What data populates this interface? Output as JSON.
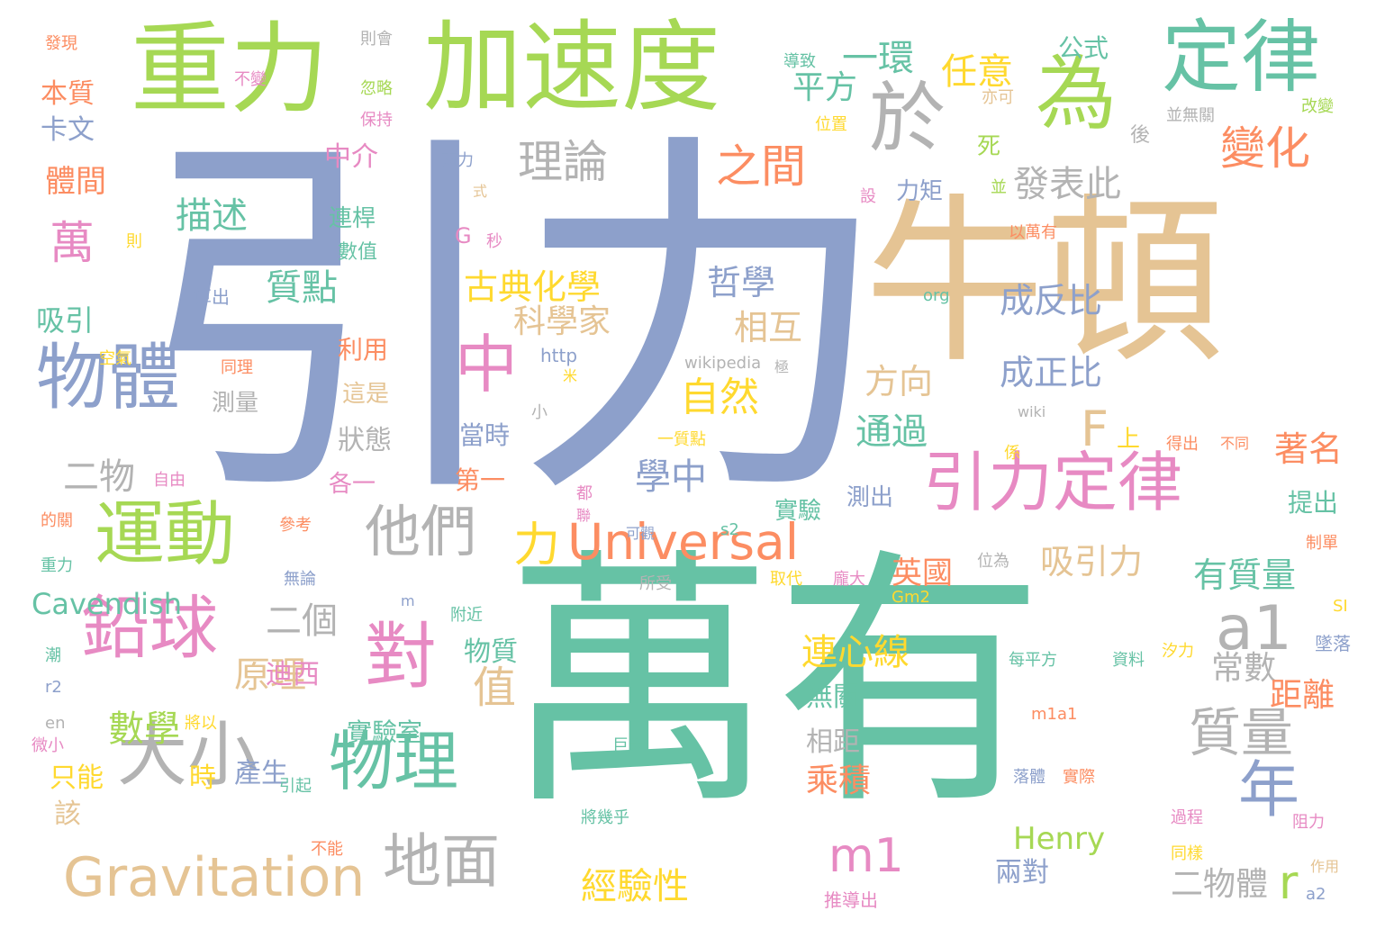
{
  "colors": {
    "green": "#66c2a5",
    "orange": "#fc8d62",
    "blue": "#8da0cb",
    "pink": "#e78ac3",
    "lime": "#a6d854",
    "yellow": "#ffd92f",
    "tan": "#e5c494",
    "gray": "#b3b3b3"
  },
  "words": [
    {
      "text": "引力",
      "color": "blue",
      "size": 420
    },
    {
      "text": "萬有",
      "color": "green",
      "size": 300
    },
    {
      "text": "牛頓",
      "color": "tan",
      "size": 200
    },
    {
      "text": "加速度",
      "color": "lime",
      "size": 110
    },
    {
      "text": "重力",
      "color": "lime",
      "size": 110
    },
    {
      "text": "定律",
      "color": "green",
      "size": 88
    },
    {
      "text": "為",
      "color": "lime",
      "size": 90
    },
    {
      "text": "於",
      "color": "gray",
      "size": 85
    },
    {
      "text": "物體",
      "color": "blue",
      "size": 80
    },
    {
      "text": "大小",
      "color": "gray",
      "size": 78
    },
    {
      "text": "運動",
      "color": "lime",
      "size": 78
    },
    {
      "text": "鉛球",
      "color": "pink",
      "size": 76
    },
    {
      "text": "對",
      "color": "pink",
      "size": 80
    },
    {
      "text": "物理",
      "color": "green",
      "size": 72
    },
    {
      "text": "引力定律",
      "color": "pink",
      "size": 72
    },
    {
      "text": "Gravitation",
      "color": "tan",
      "size": 60
    },
    {
      "text": "地面",
      "color": "gray",
      "size": 65
    },
    {
      "text": "Universal",
      "color": "orange",
      "size": 55
    },
    {
      "text": "中",
      "color": "pink",
      "size": 70
    },
    {
      "text": "他們",
      "color": "gray",
      "size": 62
    },
    {
      "text": "a1",
      "color": "gray",
      "size": 68
    },
    {
      "text": "年",
      "color": "blue",
      "size": 68
    },
    {
      "text": "質量",
      "color": "gray",
      "size": 58
    },
    {
      "text": "F",
      "color": "tan",
      "size": 54
    },
    {
      "text": "r",
      "color": "lime",
      "size": 52
    },
    {
      "text": "m1",
      "color": "pink",
      "size": 52
    },
    {
      "text": "理論",
      "color": "gray",
      "size": 50
    },
    {
      "text": "之間",
      "color": "orange",
      "size": 50
    },
    {
      "text": "變化",
      "color": "orange",
      "size": 50
    },
    {
      "text": "力",
      "color": "yellow",
      "size": 52
    },
    {
      "text": "值",
      "color": "tan",
      "size": 48
    },
    {
      "text": "萬",
      "color": "pink",
      "size": 50
    },
    {
      "text": "一環",
      "color": "green",
      "size": 40
    },
    {
      "text": "任意",
      "color": "yellow",
      "size": 40
    },
    {
      "text": "平方",
      "color": "green",
      "size": 36
    },
    {
      "text": "發表此",
      "color": "gray",
      "size": 40
    },
    {
      "text": "描述",
      "color": "green",
      "size": 40
    },
    {
      "text": "質點",
      "color": "green",
      "size": 40
    },
    {
      "text": "古典化學",
      "color": "yellow",
      "size": 38
    },
    {
      "text": "哲學",
      "color": "blue",
      "size": 38
    },
    {
      "text": "成反比",
      "color": "blue",
      "size": 38
    },
    {
      "text": "相互",
      "color": "tan",
      "size": 38
    },
    {
      "text": "科學家",
      "color": "tan",
      "size": 36
    },
    {
      "text": "成正比",
      "color": "blue",
      "size": 38
    },
    {
      "text": "方向",
      "color": "tan",
      "size": 38
    },
    {
      "text": "自然",
      "color": "yellow",
      "size": 44
    },
    {
      "text": "通過",
      "color": "green",
      "size": 40
    },
    {
      "text": "著名",
      "color": "orange",
      "size": 38
    },
    {
      "text": "二物",
      "color": "gray",
      "size": 40
    },
    {
      "text": "學中",
      "color": "blue",
      "size": 40
    },
    {
      "text": "吸引力",
      "color": "tan",
      "size": 38
    },
    {
      "text": "有質量",
      "color": "green",
      "size": 38
    },
    {
      "text": "英國",
      "color": "orange",
      "size": 34
    },
    {
      "text": "二個",
      "color": "gray",
      "size": 40
    },
    {
      "text": "連心線",
      "color": "yellow",
      "size": 40
    },
    {
      "text": "常數",
      "color": "gray",
      "size": 36
    },
    {
      "text": "距離",
      "color": "orange",
      "size": 36
    },
    {
      "text": "原理",
      "color": "tan",
      "size": 40
    },
    {
      "text": "數學",
      "color": "lime",
      "size": 40
    },
    {
      "text": "乘積",
      "color": "orange",
      "size": 36
    },
    {
      "text": "Henry",
      "color": "lime",
      "size": 34
    },
    {
      "text": "經驗性",
      "color": "yellow",
      "size": 40
    },
    {
      "text": "二物體",
      "color": "gray",
      "size": 36
    },
    {
      "text": "兩對",
      "color": "blue",
      "size": 30
    },
    {
      "text": "Cavendish",
      "color": "green",
      "size": 32
    },
    {
      "text": "物質",
      "color": "green",
      "size": 30
    },
    {
      "text": "無關",
      "color": "green",
      "size": 30
    },
    {
      "text": "迪西",
      "color": "pink",
      "size": 30
    },
    {
      "text": "實驗室",
      "color": "green",
      "size": 28
    },
    {
      "text": "相距",
      "color": "gray",
      "size": 30
    },
    {
      "text": "產生",
      "color": "blue",
      "size": 30
    },
    {
      "text": "時",
      "color": "yellow",
      "size": 30
    },
    {
      "text": "該",
      "color": "tan",
      "size": 30
    },
    {
      "text": "只能",
      "color": "yellow",
      "size": 30
    },
    {
      "text": "吸引",
      "color": "green",
      "size": 32
    },
    {
      "text": "卡文",
      "color": "blue",
      "size": 30
    },
    {
      "text": "本質",
      "color": "orange",
      "size": 30
    },
    {
      "text": "體間",
      "color": "orange",
      "size": 34
    },
    {
      "text": "公式",
      "color": "green",
      "size": 28
    },
    {
      "text": "中介",
      "color": "pink",
      "size": 30
    },
    {
      "text": "狀態",
      "color": "gray",
      "size": 30
    },
    {
      "text": "當時",
      "color": "blue",
      "size": 28
    },
    {
      "text": "第一",
      "color": "orange",
      "size": 28
    },
    {
      "text": "各一",
      "color": "pink",
      "size": 26
    },
    {
      "text": "利用",
      "color": "orange",
      "size": 28
    },
    {
      "text": "這是",
      "color": "tan",
      "size": 26
    },
    {
      "text": "測量",
      "color": "gray",
      "size": 26
    },
    {
      "text": "連桿",
      "color": "green",
      "size": 26
    },
    {
      "text": "數值",
      "color": "green",
      "size": 22
    },
    {
      "text": "死",
      "color": "lime",
      "size": 26
    },
    {
      "text": "力矩",
      "color": "blue",
      "size": 26
    },
    {
      "text": "設",
      "color": "pink",
      "size": 18
    },
    {
      "text": "並",
      "color": "lime",
      "size": 18
    },
    {
      "text": "後",
      "color": "gray",
      "size": 22
    },
    {
      "text": "並無關",
      "color": "gray",
      "size": 18
    },
    {
      "text": "亦可",
      "color": "tan",
      "size": 18
    },
    {
      "text": "改變",
      "color": "lime",
      "size": 18
    },
    {
      "text": "導致",
      "color": "green",
      "size": 18
    },
    {
      "text": "忽略",
      "color": "lime",
      "size": 18
    },
    {
      "text": "保持",
      "color": "pink",
      "size": 18
    },
    {
      "text": "位置",
      "color": "yellow",
      "size": 18
    },
    {
      "text": "兩力",
      "color": "blue",
      "size": 18
    },
    {
      "text": "式",
      "color": "tan",
      "size": 16
    },
    {
      "text": "以萬有",
      "color": "orange",
      "size": 18
    },
    {
      "text": "G",
      "color": "pink",
      "size": 24
    },
    {
      "text": "秒",
      "color": "pink",
      "size": 18
    },
    {
      "text": "則",
      "color": "yellow",
      "size": 18
    },
    {
      "text": "算出",
      "color": "blue",
      "size": 20
    },
    {
      "text": "org",
      "color": "green",
      "size": 18
    },
    {
      "text": "http",
      "color": "blue",
      "size": 20
    },
    {
      "text": "米",
      "color": "yellow",
      "size": 16
    },
    {
      "text": "wikipedia",
      "color": "gray",
      "size": 18
    },
    {
      "text": "極",
      "color": "gray",
      "size": 16
    },
    {
      "text": "wiki",
      "color": "gray",
      "size": 16
    },
    {
      "text": "小",
      "color": "gray",
      "size": 18
    },
    {
      "text": "一質點",
      "color": "yellow",
      "size": 18
    },
    {
      "text": "上",
      "color": "yellow",
      "size": 26
    },
    {
      "text": "係",
      "color": "yellow",
      "size": 18
    },
    {
      "text": "得出",
      "color": "orange",
      "size": 18
    },
    {
      "text": "不同",
      "color": "orange",
      "size": 16
    },
    {
      "text": "同理",
      "color": "orange",
      "size": 18
    },
    {
      "text": "空氣",
      "color": "yellow",
      "size": 18
    },
    {
      "text": "自由",
      "color": "pink",
      "size": 18
    },
    {
      "text": "實驗",
      "color": "green",
      "size": 26
    },
    {
      "text": "測出",
      "color": "blue",
      "size": 26
    },
    {
      "text": "提出",
      "color": "green",
      "size": 28
    },
    {
      "text": "都",
      "color": "pink",
      "size": 18
    },
    {
      "text": "聯",
      "color": "pink",
      "size": 16
    },
    {
      "text": "可觀",
      "color": "blue",
      "size": 16
    },
    {
      "text": "s2",
      "color": "green",
      "size": 18
    },
    {
      "text": "參考",
      "color": "orange",
      "size": 18
    },
    {
      "text": "無論",
      "color": "blue",
      "size": 18
    },
    {
      "text": "所受",
      "color": "gray",
      "size": 18
    },
    {
      "text": "取代",
      "color": "yellow",
      "size": 18
    },
    {
      "text": "龐大",
      "color": "pink",
      "size": 18
    },
    {
      "text": "位為",
      "color": "gray",
      "size": 18
    },
    {
      "text": "Gm2",
      "color": "yellow",
      "size": 18
    },
    {
      "text": "制單",
      "color": "orange",
      "size": 18
    },
    {
      "text": "SI",
      "color": "yellow",
      "size": 18
    },
    {
      "text": "墜落",
      "color": "blue",
      "size": 20
    },
    {
      "text": "m",
      "color": "blue",
      "size": 16
    },
    {
      "text": "附近",
      "color": "green",
      "size": 18
    },
    {
      "text": "每平方",
      "color": "green",
      "size": 18
    },
    {
      "text": "資料",
      "color": "green",
      "size": 18
    },
    {
      "text": "汐力",
      "color": "yellow",
      "size": 18
    },
    {
      "text": "m1a1",
      "color": "orange",
      "size": 18
    },
    {
      "text": "巨大",
      "color": "green",
      "size": 18
    },
    {
      "text": "落體",
      "color": "blue",
      "size": 18
    },
    {
      "text": "實際",
      "color": "orange",
      "size": 18
    },
    {
      "text": "將以",
      "color": "yellow",
      "size": 18
    },
    {
      "text": "微小",
      "color": "pink",
      "size": 18
    },
    {
      "text": "引起",
      "color": "green",
      "size": 18
    },
    {
      "text": "不能",
      "color": "orange",
      "size": 18
    },
    {
      "text": "將幾乎",
      "color": "green",
      "size": 18
    },
    {
      "text": "推導出",
      "color": "pink",
      "size": 20
    },
    {
      "text": "過程",
      "color": "pink",
      "size": 18
    },
    {
      "text": "阻力",
      "color": "pink",
      "size": 18
    },
    {
      "text": "同樣",
      "color": "yellow",
      "size": 18
    },
    {
      "text": "作用",
      "color": "tan",
      "size": 16
    },
    {
      "text": "a2",
      "color": "blue",
      "size": 18
    },
    {
      "text": "發現",
      "color": "orange",
      "size": 18
    },
    {
      "text": "則會",
      "color": "gray",
      "size": 18
    },
    {
      "text": "不變",
      "color": "pink",
      "size": 18
    },
    {
      "text": "的關",
      "color": "orange",
      "size": 18
    },
    {
      "text": "重力",
      "color": "green",
      "size": 18
    },
    {
      "text": "潮",
      "color": "green",
      "size": 18
    },
    {
      "text": "r2",
      "color": "blue",
      "size": 18
    },
    {
      "text": "en",
      "color": "gray",
      "size": 18
    }
  ]
}
